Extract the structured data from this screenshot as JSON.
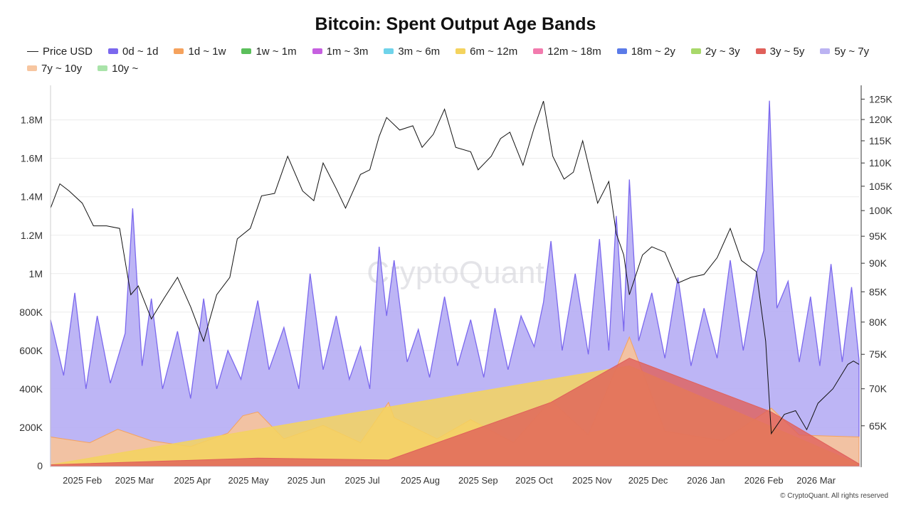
{
  "title": "Bitcoin: Spent Output Age Bands",
  "watermark": "CryptoQuant",
  "footer": "© CryptoQuant. All rights reserved",
  "legend": [
    {
      "label": "Price USD",
      "color": "#222222",
      "kind": "line"
    },
    {
      "label": "0d ~ 1d",
      "color": "#7B68EE",
      "kind": "area"
    },
    {
      "label": "1d ~ 1w",
      "color": "#F5A25D",
      "kind": "area"
    },
    {
      "label": "1w ~ 1m",
      "color": "#5BBF5B",
      "kind": "area"
    },
    {
      "label": "1m ~ 3m",
      "color": "#C660E0",
      "kind": "area"
    },
    {
      "label": "3m ~ 6m",
      "color": "#6FD3EA",
      "kind": "area"
    },
    {
      "label": "6m ~ 12m",
      "color": "#F4D35E",
      "kind": "area"
    },
    {
      "label": "12m ~ 18m",
      "color": "#F27BAE",
      "kind": "area"
    },
    {
      "label": "18m ~ 2y",
      "color": "#5B7BE8",
      "kind": "area"
    },
    {
      "label": "2y ~ 3y",
      "color": "#A8D86A",
      "kind": "area"
    },
    {
      "label": "3y ~ 5y",
      "color": "#E0605A",
      "kind": "area"
    },
    {
      "label": "5y ~ 7y",
      "color": "#BBB3F2",
      "kind": "area"
    },
    {
      "label": "7y ~ 10y",
      "color": "#F7C6A0",
      "kind": "area"
    },
    {
      "label": "10y ~",
      "color": "#A9E3A9",
      "kind": "area"
    }
  ],
  "chart_data": {
    "type": "area",
    "grid": "horizontal",
    "legend_position": "top",
    "x_range": [
      "2025-01-15",
      "2026-03-24"
    ],
    "x_tick_labels": [
      {
        "date": "2025-02-01",
        "label": "2025 Feb"
      },
      {
        "date": "2025-03-01",
        "label": "2025 Mar"
      },
      {
        "date": "2025-04-01",
        "label": "2025 Apr"
      },
      {
        "date": "2025-05-01",
        "label": "2025 May"
      },
      {
        "date": "2025-06-01",
        "label": "2025 Jun"
      },
      {
        "date": "2025-07-01",
        "label": "2025 Jul"
      },
      {
        "date": "2025-08-01",
        "label": "2025 Aug"
      },
      {
        "date": "2025-09-01",
        "label": "2025 Sep"
      },
      {
        "date": "2025-10-01",
        "label": "2025 Oct"
      },
      {
        "date": "2025-11-01",
        "label": "2025 Nov"
      },
      {
        "date": "2025-12-01",
        "label": "2025 Dec"
      },
      {
        "date": "2026-01-01",
        "label": "2026 Jan"
      },
      {
        "date": "2026-02-01",
        "label": "2026 Feb"
      },
      {
        "date": "2026-03-01",
        "label": "2026 Mar"
      }
    ],
    "y_left": {
      "range": [
        0,
        1980000
      ],
      "ticks": [
        {
          "value": 0,
          "label": "0"
        },
        {
          "value": 200000,
          "label": "200K"
        },
        {
          "value": 400000,
          "label": "400K"
        },
        {
          "value": 600000,
          "label": "600K"
        },
        {
          "value": 800000,
          "label": "800K"
        },
        {
          "value": 1000000,
          "label": "1M"
        },
        {
          "value": 1200000,
          "label": "1.2M"
        },
        {
          "value": 1400000,
          "label": "1.4M"
        },
        {
          "value": 1600000,
          "label": "1.6M"
        },
        {
          "value": 1800000,
          "label": "1.8M"
        }
      ]
    },
    "y_right": {
      "scale": "log",
      "range": [
        60000,
        128500
      ],
      "ticks": [
        {
          "value": 65000,
          "label": "65K"
        },
        {
          "value": 70000,
          "label": "70K"
        },
        {
          "value": 75000,
          "label": "75K"
        },
        {
          "value": 80000,
          "label": "80K"
        },
        {
          "value": 85000,
          "label": "85K"
        },
        {
          "value": 90000,
          "label": "90K"
        },
        {
          "value": 95000,
          "label": "95K"
        },
        {
          "value": 100000,
          "label": "100K"
        },
        {
          "value": 105000,
          "label": "105K"
        },
        {
          "value": 110000,
          "label": "110K"
        },
        {
          "value": 115000,
          "label": "115K"
        },
        {
          "value": 120000,
          "label": "120K"
        },
        {
          "value": 125000,
          "label": "125K"
        }
      ]
    },
    "price_usd": [
      [
        "2025-01-15",
        100500
      ],
      [
        "2025-01-20",
        105500
      ],
      [
        "2025-01-25",
        104000
      ],
      [
        "2025-02-01",
        101500
      ],
      [
        "2025-02-07",
        97000
      ],
      [
        "2025-02-14",
        97000
      ],
      [
        "2025-02-21",
        96500
      ],
      [
        "2025-02-27",
        84500
      ],
      [
        "2025-03-03",
        86000
      ],
      [
        "2025-03-10",
        80500
      ],
      [
        "2025-03-17",
        84000
      ],
      [
        "2025-03-24",
        87500
      ],
      [
        "2025-03-31",
        82500
      ],
      [
        "2025-04-07",
        77000
      ],
      [
        "2025-04-14",
        84500
      ],
      [
        "2025-04-21",
        87500
      ],
      [
        "2025-04-25",
        94500
      ],
      [
        "2025-05-02",
        96500
      ],
      [
        "2025-05-08",
        103000
      ],
      [
        "2025-05-15",
        103500
      ],
      [
        "2025-05-22",
        111500
      ],
      [
        "2025-05-30",
        104000
      ],
      [
        "2025-06-05",
        102000
      ],
      [
        "2025-06-10",
        110000
      ],
      [
        "2025-06-17",
        104500
      ],
      [
        "2025-06-22",
        100500
      ],
      [
        "2025-06-30",
        107500
      ],
      [
        "2025-07-05",
        108500
      ],
      [
        "2025-07-10",
        116000
      ],
      [
        "2025-07-14",
        120500
      ],
      [
        "2025-07-21",
        117500
      ],
      [
        "2025-07-28",
        118500
      ],
      [
        "2025-08-02",
        113500
      ],
      [
        "2025-08-08",
        116500
      ],
      [
        "2025-08-14",
        122500
      ],
      [
        "2025-08-20",
        113500
      ],
      [
        "2025-08-28",
        112500
      ],
      [
        "2025-09-01",
        108500
      ],
      [
        "2025-09-08",
        111500
      ],
      [
        "2025-09-13",
        115500
      ],
      [
        "2025-09-18",
        117000
      ],
      [
        "2025-09-25",
        109500
      ],
      [
        "2025-10-01",
        118000
      ],
      [
        "2025-10-06",
        124500
      ],
      [
        "2025-10-11",
        111500
      ],
      [
        "2025-10-17",
        106500
      ],
      [
        "2025-10-22",
        108000
      ],
      [
        "2025-10-27",
        115000
      ],
      [
        "2025-11-04",
        101500
      ],
      [
        "2025-11-10",
        106000
      ],
      [
        "2025-11-14",
        95500
      ],
      [
        "2025-11-18",
        91500
      ],
      [
        "2025-11-21",
        84500
      ],
      [
        "2025-11-28",
        91500
      ],
      [
        "2025-12-03",
        93000
      ],
      [
        "2025-12-10",
        92000
      ],
      [
        "2025-12-17",
        86500
      ],
      [
        "2025-12-24",
        87500
      ],
      [
        "2025-12-31",
        88000
      ],
      [
        "2026-01-07",
        91000
      ],
      [
        "2026-01-14",
        96500
      ],
      [
        "2026-01-20",
        90500
      ],
      [
        "2026-01-28",
        88500
      ],
      [
        "2026-02-02",
        77000
      ],
      [
        "2026-02-05",
        64000
      ],
      [
        "2026-02-12",
        66500
      ],
      [
        "2026-02-18",
        67000
      ],
      [
        "2026-02-24",
        64500
      ],
      [
        "2026-03-02",
        68000
      ],
      [
        "2026-03-10",
        70000
      ],
      [
        "2026-03-18",
        73500
      ],
      [
        "2026-03-21",
        74000
      ],
      [
        "2026-03-24",
        73500
      ]
    ],
    "band_0d_1d": [
      [
        "2025-01-15",
        760000
      ],
      [
        "2025-01-22",
        470000
      ],
      [
        "2025-01-28",
        900000
      ],
      [
        "2025-02-03",
        400000
      ],
      [
        "2025-02-09",
        780000
      ],
      [
        "2025-02-16",
        430000
      ],
      [
        "2025-02-24",
        690000
      ],
      [
        "2025-02-28",
        1340000
      ],
      [
        "2025-03-05",
        520000
      ],
      [
        "2025-03-10",
        870000
      ],
      [
        "2025-03-16",
        400000
      ],
      [
        "2025-03-24",
        700000
      ],
      [
        "2025-03-31",
        350000
      ],
      [
        "2025-04-07",
        870000
      ],
      [
        "2025-04-14",
        400000
      ],
      [
        "2025-04-20",
        600000
      ],
      [
        "2025-04-27",
        450000
      ],
      [
        "2025-05-06",
        860000
      ],
      [
        "2025-05-12",
        500000
      ],
      [
        "2025-05-20",
        720000
      ],
      [
        "2025-05-28",
        400000
      ],
      [
        "2025-06-03",
        1000000
      ],
      [
        "2025-06-10",
        500000
      ],
      [
        "2025-06-17",
        780000
      ],
      [
        "2025-06-24",
        450000
      ],
      [
        "2025-06-30",
        620000
      ],
      [
        "2025-07-05",
        400000
      ],
      [
        "2025-07-10",
        1140000
      ],
      [
        "2025-07-14",
        780000
      ],
      [
        "2025-07-18",
        1070000
      ],
      [
        "2025-07-25",
        540000
      ],
      [
        "2025-07-31",
        710000
      ],
      [
        "2025-08-06",
        460000
      ],
      [
        "2025-08-14",
        880000
      ],
      [
        "2025-08-21",
        520000
      ],
      [
        "2025-08-28",
        760000
      ],
      [
        "2025-09-04",
        460000
      ],
      [
        "2025-09-10",
        820000
      ],
      [
        "2025-09-17",
        500000
      ],
      [
        "2025-09-24",
        780000
      ],
      [
        "2025-10-01",
        620000
      ],
      [
        "2025-10-06",
        850000
      ],
      [
        "2025-10-10",
        1170000
      ],
      [
        "2025-10-16",
        600000
      ],
      [
        "2025-10-23",
        1000000
      ],
      [
        "2025-10-30",
        580000
      ],
      [
        "2025-11-05",
        1180000
      ],
      [
        "2025-11-10",
        600000
      ],
      [
        "2025-11-14",
        1300000
      ],
      [
        "2025-11-18",
        700000
      ],
      [
        "2025-11-21",
        1490000
      ],
      [
        "2025-11-26",
        650000
      ],
      [
        "2025-12-03",
        900000
      ],
      [
        "2025-12-10",
        560000
      ],
      [
        "2025-12-17",
        980000
      ],
      [
        "2025-12-24",
        520000
      ],
      [
        "2025-12-31",
        820000
      ],
      [
        "2026-01-07",
        560000
      ],
      [
        "2026-01-14",
        1070000
      ],
      [
        "2026-01-21",
        600000
      ],
      [
        "2026-01-28",
        1000000
      ],
      [
        "2026-02-01",
        1120000
      ],
      [
        "2026-02-04",
        1900000
      ],
      [
        "2026-02-08",
        820000
      ],
      [
        "2026-02-14",
        960000
      ],
      [
        "2026-02-20",
        540000
      ],
      [
        "2026-02-26",
        880000
      ],
      [
        "2026-03-03",
        520000
      ],
      [
        "2026-03-09",
        1050000
      ],
      [
        "2026-03-15",
        540000
      ],
      [
        "2026-03-20",
        930000
      ],
      [
        "2026-03-24",
        550000
      ]
    ],
    "band_1d_1w": [
      [
        "2025-01-15",
        150000
      ],
      [
        "2025-02-05",
        120000
      ],
      [
        "2025-02-20",
        190000
      ],
      [
        "2025-03-10",
        130000
      ],
      [
        "2025-03-31",
        100000
      ],
      [
        "2025-04-20",
        170000
      ],
      [
        "2025-04-28",
        260000
      ],
      [
        "2025-05-06",
        280000
      ],
      [
        "2025-05-20",
        140000
      ],
      [
        "2025-06-10",
        210000
      ],
      [
        "2025-06-30",
        120000
      ],
      [
        "2025-07-15",
        330000
      ],
      [
        "2025-07-18",
        250000
      ],
      [
        "2025-08-10",
        140000
      ],
      [
        "2025-08-28",
        240000
      ],
      [
        "2025-09-20",
        120000
      ],
      [
        "2025-10-10",
        340000
      ],
      [
        "2025-10-30",
        160000
      ],
      [
        "2025-11-21",
        670000
      ],
      [
        "2025-12-10",
        180000
      ],
      [
        "2026-01-10",
        130000
      ],
      [
        "2026-02-05",
        300000
      ],
      [
        "2026-02-20",
        160000
      ],
      [
        "2026-03-24",
        150000
      ]
    ],
    "band_3y_5y": [
      [
        "2025-01-15",
        5000
      ],
      [
        "2025-05-06",
        40000
      ],
      [
        "2025-07-15",
        30000
      ],
      [
        "2025-10-10",
        330000
      ],
      [
        "2025-11-21",
        560000
      ],
      [
        "2026-02-05",
        280000
      ],
      [
        "2026-03-24",
        10000
      ]
    ],
    "band_6m_12m": [
      [
        "2025-01-15",
        5000
      ],
      [
        "2025-11-21",
        520000
      ],
      [
        "2026-03-24",
        8000
      ]
    ]
  }
}
